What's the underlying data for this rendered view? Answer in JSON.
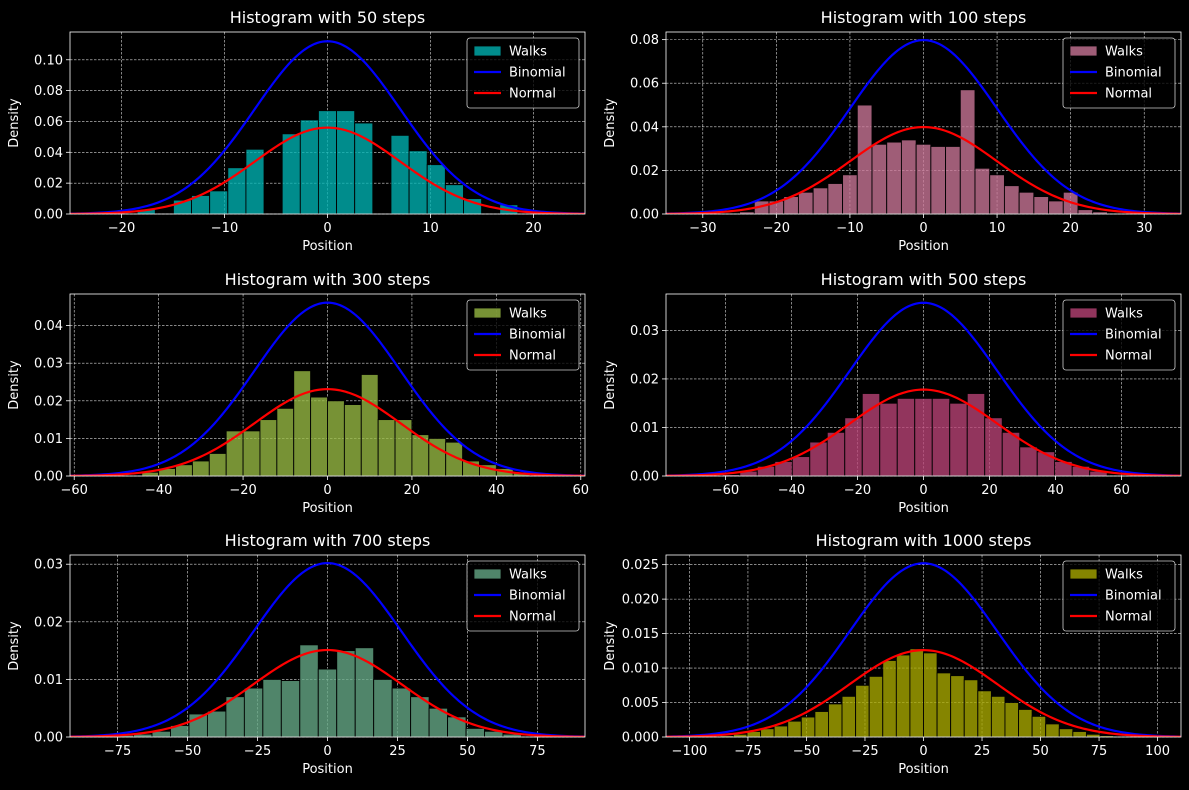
{
  "chart_data": [
    {
      "type": "bar",
      "title": "Histogram with 50 steps",
      "xlabel": "Position",
      "ylabel": "Density",
      "xlim": [
        -25,
        25
      ],
      "ylim": [
        0,
        0.118
      ],
      "xticks": [
        -20,
        -10,
        0,
        10,
        20
      ],
      "xtick_labels": [
        "−20",
        "−10",
        "0",
        "10",
        "20"
      ],
      "yticks": [
        0,
        0.02,
        0.04,
        0.06,
        0.08,
        0.1
      ],
      "ytick_labels": [
        "0.00",
        "0.02",
        "0.04",
        "0.06",
        "0.08",
        "0.10"
      ],
      "grid": true,
      "legend_position": "top-right",
      "bar_color": "#00b3b3",
      "series": [
        {
          "name": "Walks",
          "kind": "histogram",
          "bin_width": 1.76,
          "bins": [
            [
              -17.6,
              0.003
            ],
            [
              -15.84,
              0.0
            ],
            [
              -14.08,
              0.009
            ],
            [
              -12.32,
              0.012
            ],
            [
              -10.56,
              0.015
            ],
            [
              -8.8,
              0.03
            ],
            [
              -7.04,
              0.042
            ],
            [
              -5.28,
              0.0
            ],
            [
              -3.52,
              0.052
            ],
            [
              -1.76,
              0.061
            ],
            [
              0.0,
              0.067
            ],
            [
              1.76,
              0.067
            ],
            [
              3.52,
              0.059
            ],
            [
              5.28,
              0.0
            ],
            [
              7.04,
              0.051
            ],
            [
              8.8,
              0.041
            ],
            [
              10.56,
              0.032
            ],
            [
              12.32,
              0.019
            ],
            [
              14.08,
              0.01
            ],
            [
              15.84,
              0.0
            ],
            [
              17.6,
              0.006
            ]
          ]
        },
        {
          "name": "Binomial",
          "kind": "line",
          "color": "#0000ff",
          "peak": 0.112,
          "sigma": 7.07
        },
        {
          "name": "Normal",
          "kind": "line",
          "color": "#ff0000",
          "peak": 0.056,
          "sigma": 7.07
        }
      ]
    },
    {
      "type": "bar",
      "title": "Histogram with 100 steps",
      "xlabel": "Position",
      "ylabel": "Density",
      "xlim": [
        -35,
        35
      ],
      "ylim": [
        0,
        0.0835
      ],
      "xticks": [
        -30,
        -20,
        -10,
        0,
        10,
        20,
        30
      ],
      "xtick_labels": [
        "−30",
        "−20",
        "−10",
        "0",
        "10",
        "20",
        "30"
      ],
      "yticks": [
        0,
        0.02,
        0.04,
        0.06,
        0.08
      ],
      "ytick_labels": [
        "0.00",
        "0.02",
        "0.04",
        "0.06",
        "0.08"
      ],
      "grid": true,
      "legend_position": "top-right",
      "bar_color": "#cc7799",
      "series": [
        {
          "name": "Walks",
          "kind": "histogram",
          "bin_width": 2.0,
          "bins": [
            [
              -24,
              0.001
            ],
            [
              -22,
              0.006
            ],
            [
              -20,
              0.006
            ],
            [
              -18,
              0.008
            ],
            [
              -16,
              0.01
            ],
            [
              -14,
              0.012
            ],
            [
              -12,
              0.014
            ],
            [
              -10,
              0.018
            ],
            [
              -8,
              0.05
            ],
            [
              -6,
              0.032
            ],
            [
              -4,
              0.033
            ],
            [
              -2,
              0.034
            ],
            [
              0,
              0.032
            ],
            [
              2,
              0.031
            ],
            [
              4,
              0.031
            ],
            [
              6,
              0.057
            ],
            [
              8,
              0.021
            ],
            [
              10,
              0.018
            ],
            [
              12,
              0.013
            ],
            [
              14,
              0.01
            ],
            [
              16,
              0.008
            ],
            [
              18,
              0.006
            ],
            [
              20,
              0.01
            ],
            [
              22,
              0.002
            ],
            [
              24,
              0.001
            ]
          ]
        },
        {
          "name": "Binomial",
          "kind": "line",
          "color": "#0000ff",
          "peak": 0.0798,
          "sigma": 10.0
        },
        {
          "name": "Normal",
          "kind": "line",
          "color": "#ff0000",
          "peak": 0.0399,
          "sigma": 10.0
        }
      ]
    },
    {
      "type": "bar",
      "title": "Histogram with 300 steps",
      "xlabel": "Position",
      "ylabel": "Density",
      "xlim": [
        -61,
        61
      ],
      "ylim": [
        0,
        0.0484
      ],
      "xticks": [
        -60,
        -40,
        -20,
        0,
        20,
        40,
        60
      ],
      "xtick_labels": [
        "−60",
        "−40",
        "−20",
        "0",
        "20",
        "40",
        "60"
      ],
      "yticks": [
        0,
        0.01,
        0.02,
        0.03,
        0.04
      ],
      "ytick_labels": [
        "0.00",
        "0.01",
        "0.02",
        "0.03",
        "0.04"
      ],
      "grid": true,
      "legend_position": "top-right",
      "bar_color": "#99bb44",
      "series": [
        {
          "name": "Walks",
          "kind": "histogram",
          "bin_width": 4.0,
          "bins": [
            [
              -42,
              0.001
            ],
            [
              -38,
              0.002
            ],
            [
              -34,
              0.003
            ],
            [
              -30,
              0.004
            ],
            [
              -26,
              0.006
            ],
            [
              -22,
              0.012
            ],
            [
              -18,
              0.012
            ],
            [
              -14,
              0.015
            ],
            [
              -10,
              0.018
            ],
            [
              -6,
              0.028
            ],
            [
              -2,
              0.021
            ],
            [
              2,
              0.02
            ],
            [
              6,
              0.019
            ],
            [
              10,
              0.027
            ],
            [
              14,
              0.015
            ],
            [
              18,
              0.015
            ],
            [
              22,
              0.011
            ],
            [
              26,
              0.01
            ],
            [
              30,
              0.009
            ],
            [
              34,
              0.004
            ],
            [
              38,
              0.003
            ],
            [
              42,
              0.002
            ],
            [
              46,
              0.001
            ]
          ]
        },
        {
          "name": "Binomial",
          "kind": "line",
          "color": "#0000ff",
          "peak": 0.0461,
          "sigma": 17.32
        },
        {
          "name": "Normal",
          "kind": "line",
          "color": "#ff0000",
          "peak": 0.0231,
          "sigma": 17.32
        }
      ]
    },
    {
      "type": "bar",
      "title": "Histogram with 500 steps",
      "xlabel": "Position",
      "ylabel": "Density",
      "xlim": [
        -78,
        78
      ],
      "ylim": [
        0,
        0.0375
      ],
      "xticks": [
        -60,
        -40,
        -20,
        0,
        20,
        40,
        60
      ],
      "xtick_labels": [
        "−60",
        "−40",
        "−20",
        "0",
        "20",
        "40",
        "60"
      ],
      "yticks": [
        0,
        0.01,
        0.02,
        0.03
      ],
      "ytick_labels": [
        "0.00",
        "0.01",
        "0.02",
        "0.03"
      ],
      "grid": true,
      "legend_position": "top-right",
      "bar_color": "#bb4477",
      "series": [
        {
          "name": "Walks",
          "kind": "histogram",
          "bin_width": 5.3,
          "bins": [
            [
              -58.3,
              0.0003
            ],
            [
              -53,
              0.001
            ],
            [
              -47.7,
              0.002
            ],
            [
              -42.4,
              0.003
            ],
            [
              -37.1,
              0.004
            ],
            [
              -31.8,
              0.007
            ],
            [
              -26.5,
              0.009
            ],
            [
              -21.2,
              0.012
            ],
            [
              -15.9,
              0.017
            ],
            [
              -10.6,
              0.015
            ],
            [
              -5.3,
              0.016
            ],
            [
              0,
              0.016
            ],
            [
              5.3,
              0.016
            ],
            [
              10.6,
              0.015
            ],
            [
              15.9,
              0.017
            ],
            [
              21.2,
              0.012
            ],
            [
              26.5,
              0.009
            ],
            [
              31.8,
              0.006
            ],
            [
              37.1,
              0.005
            ],
            [
              42.4,
              0.003
            ],
            [
              47.7,
              0.002
            ],
            [
              53,
              0.001
            ]
          ]
        },
        {
          "name": "Binomial",
          "kind": "line",
          "color": "#0000ff",
          "peak": 0.0357,
          "sigma": 22.36
        },
        {
          "name": "Normal",
          "kind": "line",
          "color": "#ff0000",
          "peak": 0.0178,
          "sigma": 22.36
        }
      ]
    },
    {
      "type": "bar",
      "title": "Histogram with 700 steps",
      "xlabel": "Position",
      "ylabel": "Density",
      "xlim": [
        -92,
        92
      ],
      "ylim": [
        0,
        0.0316
      ],
      "xticks": [
        -75,
        -50,
        -25,
        0,
        25,
        50,
        75
      ],
      "xtick_labels": [
        "−75",
        "−50",
        "−25",
        "0",
        "25",
        "50",
        "75"
      ],
      "yticks": [
        0,
        0.01,
        0.02,
        0.03
      ],
      "ytick_labels": [
        "0.00",
        "0.01",
        "0.02",
        "0.03"
      ],
      "grid": true,
      "legend_position": "top-right",
      "bar_color": "#66aa88",
      "series": [
        {
          "name": "Walks",
          "kind": "histogram",
          "bin_width": 6.6,
          "bins": [
            [
              -72.6,
              0.0003
            ],
            [
              -66,
              0.0005
            ],
            [
              -59.4,
              0.001
            ],
            [
              -52.8,
              0.002
            ],
            [
              -46.2,
              0.004
            ],
            [
              -39.6,
              0.0045
            ],
            [
              -33,
              0.007
            ],
            [
              -26.4,
              0.0085
            ],
            [
              -19.8,
              0.01
            ],
            [
              -13.2,
              0.0098
            ],
            [
              -6.6,
              0.016
            ],
            [
              0,
              0.0118
            ],
            [
              6.6,
              0.015
            ],
            [
              13.2,
              0.0155
            ],
            [
              19.8,
              0.01
            ],
            [
              26.4,
              0.0085
            ],
            [
              33,
              0.007
            ],
            [
              39.6,
              0.005
            ],
            [
              46.2,
              0.0035
            ],
            [
              52.8,
              0.0015
            ],
            [
              59.4,
              0.001
            ],
            [
              66,
              0.0005
            ]
          ]
        },
        {
          "name": "Binomial",
          "kind": "line",
          "color": "#0000ff",
          "peak": 0.0302,
          "sigma": 26.46
        },
        {
          "name": "Normal",
          "kind": "line",
          "color": "#ff0000",
          "peak": 0.0151,
          "sigma": 26.46
        }
      ]
    },
    {
      "type": "bar",
      "title": "Histogram with 1000 steps",
      "xlabel": "Position",
      "ylabel": "Density",
      "xlim": [
        -110,
        110
      ],
      "ylim": [
        0,
        0.0264
      ],
      "xticks": [
        -100,
        -75,
        -50,
        -25,
        0,
        25,
        50,
        75,
        100
      ],
      "xtick_labels": [
        "−100",
        "−75",
        "−50",
        "−25",
        "0",
        "25",
        "50",
        "75",
        "100"
      ],
      "yticks": [
        0,
        0.005,
        0.01,
        0.015,
        0.02,
        0.025
      ],
      "ytick_labels": [
        "0.000",
        "0.005",
        "0.010",
        "0.015",
        "0.020",
        "0.025"
      ],
      "grid": true,
      "legend_position": "top-right",
      "bar_color": "#aaaa00",
      "series": [
        {
          "name": "Walks",
          "kind": "histogram",
          "bin_width": 5.8,
          "bins": [
            [
              -84.1,
              0.0002
            ],
            [
              -78.3,
              0.0004
            ],
            [
              -72.5,
              0.0008
            ],
            [
              -66.7,
              0.0012
            ],
            [
              -60.9,
              0.0016
            ],
            [
              -55.1,
              0.0023
            ],
            [
              -49.3,
              0.0029
            ],
            [
              -43.5,
              0.0037
            ],
            [
              -37.7,
              0.0048
            ],
            [
              -31.9,
              0.0059
            ],
            [
              -26.1,
              0.0075
            ],
            [
              -20.3,
              0.0088
            ],
            [
              -14.5,
              0.0111
            ],
            [
              -8.7,
              0.0119
            ],
            [
              -2.9,
              0.0128
            ],
            [
              2.9,
              0.0122
            ],
            [
              8.7,
              0.0093
            ],
            [
              14.5,
              0.0089
            ],
            [
              20.3,
              0.0083
            ],
            [
              26.1,
              0.0067
            ],
            [
              31.9,
              0.0059
            ],
            [
              37.7,
              0.005
            ],
            [
              43.5,
              0.004
            ],
            [
              49.3,
              0.003
            ],
            [
              55.1,
              0.0019
            ],
            [
              60.9,
              0.0012
            ],
            [
              66.7,
              0.0008
            ],
            [
              72.5,
              0.0004
            ],
            [
              78.3,
              0.0002
            ]
          ]
        },
        {
          "name": "Binomial",
          "kind": "line",
          "color": "#0000ff",
          "peak": 0.0252,
          "sigma": 31.62
        },
        {
          "name": "Normal",
          "kind": "line",
          "color": "#ff0000",
          "peak": 0.0126,
          "sigma": 31.62
        }
      ]
    }
  ]
}
